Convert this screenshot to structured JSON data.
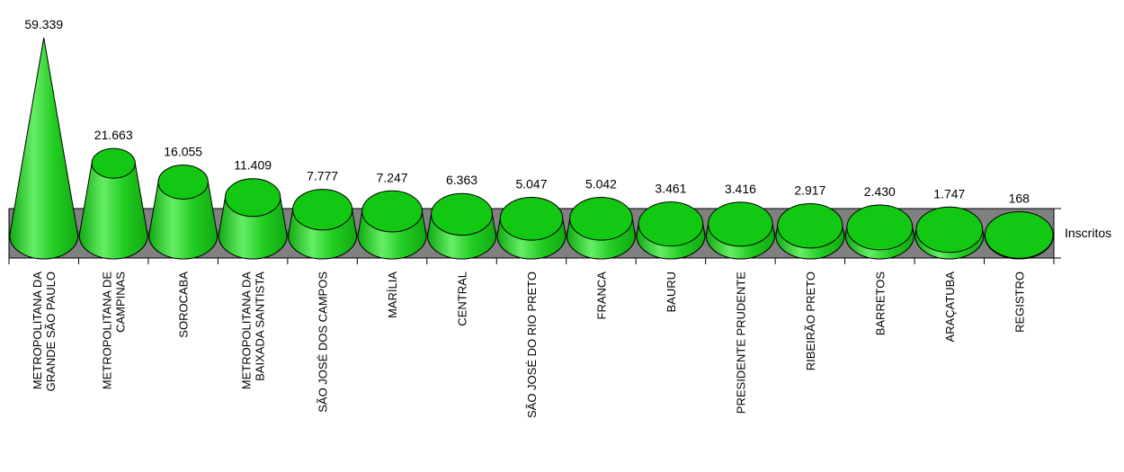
{
  "chart_data": {
    "type": "bar",
    "shape": "cone",
    "title": "",
    "xlabel": "",
    "ylabel": "",
    "series": [
      {
        "name": "Inscritos",
        "values": [
          59339,
          21663,
          16055,
          11409,
          7777,
          7247,
          6363,
          5047,
          5042,
          3461,
          3416,
          2917,
          2430,
          1747,
          168
        ]
      }
    ],
    "categories": [
      [
        "METROPOLITANA DA",
        "GRANDE SÃO PAULO"
      ],
      [
        "METROPOLITANA DE",
        "CAMPINAS"
      ],
      [
        "SOROCABA"
      ],
      [
        "METROPOLITANA DA",
        "BAIXADA SANTISTA"
      ],
      [
        "SÃO JOSÉ DOS CAMPOS"
      ],
      [
        "MARÍLIA"
      ],
      [
        "CENTRAL"
      ],
      [
        "SÃO JOSÉ DO RIO PRETO"
      ],
      [
        "FRANCA"
      ],
      [
        "BAURU"
      ],
      [
        "PRESIDENTE PRUDENTE"
      ],
      [
        "RIBEIRÃO PRETO"
      ],
      [
        "BARRETOS"
      ],
      [
        "ARAÇATUBA"
      ],
      [
        "REGISTRO"
      ]
    ],
    "value_labels": [
      "59.339",
      "21.663",
      "16.055",
      "11.409",
      "7.777",
      "7.247",
      "6.363",
      "5.047",
      "5.042",
      "3.461",
      "3.416",
      "2.917",
      "2.430",
      "1.747",
      "168"
    ],
    "legend": "right",
    "grid": false,
    "colors": {
      "cone": "#22cc22",
      "cone_light": "#66ee66",
      "cone_dark": "#11aa11",
      "top": "#12c812",
      "outline": "#000000",
      "floor": "#808080"
    }
  }
}
